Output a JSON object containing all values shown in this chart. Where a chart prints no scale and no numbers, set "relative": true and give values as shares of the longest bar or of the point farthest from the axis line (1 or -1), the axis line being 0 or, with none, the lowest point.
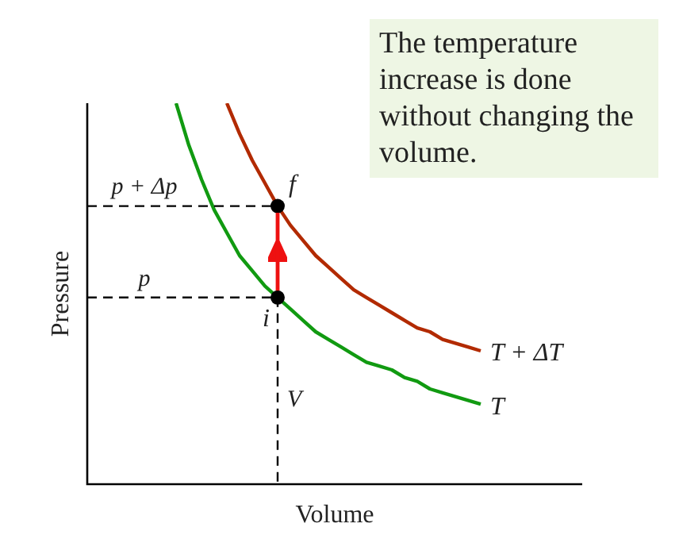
{
  "chart_data": {
    "type": "line",
    "relative": true,
    "xlabel": "Volume",
    "ylabel": "Pressure",
    "legend": false,
    "categories": [
      null,
      null,
      null,
      null,
      null,
      null,
      null,
      null,
      null,
      null,
      null,
      null,
      null,
      null,
      null,
      null,
      null,
      null,
      null,
      null,
      null,
      null,
      null,
      null,
      null,
      null,
      null,
      null,
      null,
      null,
      null,
      null,
      null,
      null,
      null,
      null,
      null,
      null,
      null,
      null
    ],
    "series": [
      {
        "name": "T + ΔT",
        "color": "#b22a00",
        "values": [
          null,
          null,
          null,
          null,
          null,
          null,
          null,
          null,
          null,
          null,
          null,
          1.0,
          0.92,
          0.85,
          0.79,
          0.73,
          0.68,
          0.64,
          0.6,
          0.57,
          0.54,
          0.51,
          0.49,
          0.47,
          0.45,
          0.43,
          0.41,
          0.4,
          0.38,
          0.37,
          0.36,
          0.35,
          null,
          null,
          null,
          null,
          null,
          null,
          null,
          null
        ]
      },
      {
        "name": "T",
        "color": "#119a11",
        "values": [
          null,
          null,
          null,
          null,
          null,
          null,
          null,
          1.0,
          0.89,
          0.8,
          0.72,
          0.66,
          0.6,
          0.56,
          0.52,
          0.49,
          0.46,
          0.43,
          0.4,
          0.38,
          0.36,
          0.34,
          0.32,
          0.31,
          0.3,
          0.28,
          0.27,
          0.25,
          0.24,
          0.23,
          0.22,
          0.21,
          null,
          null,
          null,
          null,
          null,
          null,
          null,
          null
        ]
      }
    ],
    "ref_lines": [
      {
        "axis": "y",
        "value": 0.73,
        "label": "p + Δp",
        "color": "#000000",
        "line_style": "dashed"
      },
      {
        "axis": "y",
        "value": 0.49,
        "label": "p",
        "color": "#000000",
        "line_style": "dashed"
      },
      {
        "axis": "x",
        "label": "V",
        "color": "#000000",
        "line_style": "dashed"
      }
    ],
    "annotations": [
      "The temperature increase is done without changing the volume.",
      {
        "text": "i",
        "y": 0.49
      },
      {
        "text": "f",
        "y": 0.73
      }
    ]
  }
}
